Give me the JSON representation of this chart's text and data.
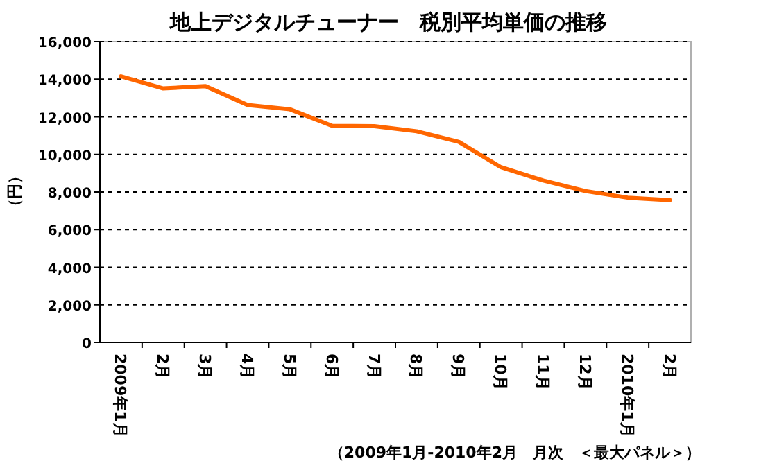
{
  "chart_data": {
    "type": "line",
    "title": "地上デジタルチューナー　税別平均単価の推移",
    "ylabel": "（円）",
    "categories": [
      "2009年1月",
      "2月",
      "3月",
      "4月",
      "5月",
      "6月",
      "7月",
      "8月",
      "9月",
      "10月",
      "11月",
      "12月",
      "2010年1月",
      "2月"
    ],
    "series": [
      {
        "color": "#ff6600",
        "values": [
          14150,
          13510,
          13630,
          12630,
          12400,
          11520,
          11500,
          11230,
          10670,
          9320,
          8610,
          8050,
          7700,
          7570
        ]
      }
    ],
    "ylim": [
      0,
      16000
    ],
    "yticks": [
      {
        "value": 0,
        "label": "0"
      },
      {
        "value": 2000,
        "label": "2,000"
      },
      {
        "value": 4000,
        "label": "4,000"
      },
      {
        "value": 6000,
        "label": "6,000"
      },
      {
        "value": 8000,
        "label": "8,000"
      },
      {
        "value": 10000,
        "label": "10,000"
      },
      {
        "value": 12000,
        "label": "12,000"
      },
      {
        "value": 14000,
        "label": "14,000"
      },
      {
        "value": 16000,
        "label": "16,000"
      }
    ],
    "grid": "y",
    "marker": "none",
    "line_style": "solid",
    "annotations": [
      "（2009年1月-2010年2月　月次　＜最大パネル＞）"
    ]
  }
}
